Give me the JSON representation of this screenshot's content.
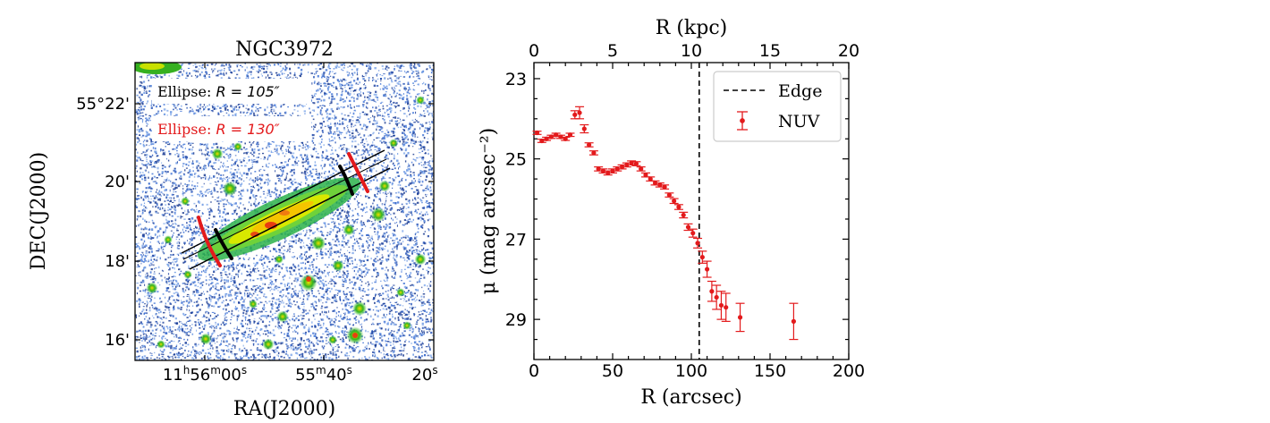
{
  "chart_data": [
    {
      "type": "image",
      "title": "NGC3972",
      "xlabel": "RA(J2000)",
      "ylabel": "DEC(J2000)",
      "x_ticks": [
        {
          "h": "11",
          "m": "56",
          "s": "00",
          "label": "11h56m00s"
        },
        {
          "m": "55",
          "s": "40",
          "label": "55m40s"
        },
        {
          "s": "20",
          "label": "20s"
        }
      ],
      "y_ticks": [
        "55°22'",
        "20'",
        "18'",
        "16'"
      ],
      "annotations": [
        {
          "prefix": "Ellipse: ",
          "eq": "R = 105″",
          "color": "#000000"
        },
        {
          "prefix": "Ellipse: ",
          "eq": "R = 130″",
          "color": "#e31a1c"
        }
      ]
    },
    {
      "type": "scatter",
      "xlabel": "R (arcsec)",
      "ylabel": "μ (mag arcsec⁻²)",
      "x2label": "R (kpc)",
      "xlim": [
        0,
        200
      ],
      "x2lim": [
        0,
        20
      ],
      "ylim": [
        30,
        22.6
      ],
      "x_ticks": [
        "0",
        "50",
        "100",
        "150",
        "200"
      ],
      "x2_ticks": [
        "0",
        "5",
        "10",
        "15",
        "20"
      ],
      "y_ticks": [
        "23",
        "25",
        "27",
        "29"
      ],
      "edge": {
        "x": 105,
        "label": "Edge"
      },
      "legend": [
        {
          "label": "Edge",
          "style": "dashed",
          "color": "#000000"
        },
        {
          "label": "NUV",
          "style": "errorbar",
          "color": "#e31a1c"
        }
      ],
      "series": [
        {
          "name": "NUV",
          "color": "#e31a1c",
          "x": [
            2,
            5,
            8,
            11,
            14,
            17,
            20,
            23,
            26,
            29,
            32,
            35,
            38,
            41,
            44,
            47,
            50,
            53,
            56,
            59,
            62,
            65,
            68,
            71,
            74,
            77,
            80,
            83,
            86,
            89,
            92,
            95,
            98,
            101,
            104,
            107,
            110,
            113,
            116,
            119,
            122,
            131,
            165
          ],
          "y": [
            24.35,
            24.55,
            24.5,
            24.45,
            24.4,
            24.45,
            24.5,
            24.4,
            23.9,
            23.85,
            24.25,
            24.65,
            24.85,
            25.25,
            25.3,
            25.35,
            25.3,
            25.25,
            25.2,
            25.15,
            25.1,
            25.12,
            25.25,
            25.4,
            25.5,
            25.6,
            25.65,
            25.7,
            25.9,
            26.05,
            26.2,
            26.4,
            26.7,
            26.85,
            27.1,
            27.45,
            27.75,
            28.3,
            28.45,
            28.65,
            28.7,
            28.95,
            29.05
          ],
          "err": [
            0.04,
            0.04,
            0.04,
            0.04,
            0.04,
            0.04,
            0.04,
            0.04,
            0.1,
            0.15,
            0.1,
            0.05,
            0.05,
            0.05,
            0.05,
            0.05,
            0.05,
            0.05,
            0.05,
            0.05,
            0.05,
            0.05,
            0.05,
            0.05,
            0.05,
            0.05,
            0.05,
            0.05,
            0.05,
            0.06,
            0.06,
            0.07,
            0.08,
            0.1,
            0.12,
            0.15,
            0.2,
            0.25,
            0.3,
            0.35,
            0.35,
            0.35,
            0.45
          ]
        }
      ]
    }
  ]
}
